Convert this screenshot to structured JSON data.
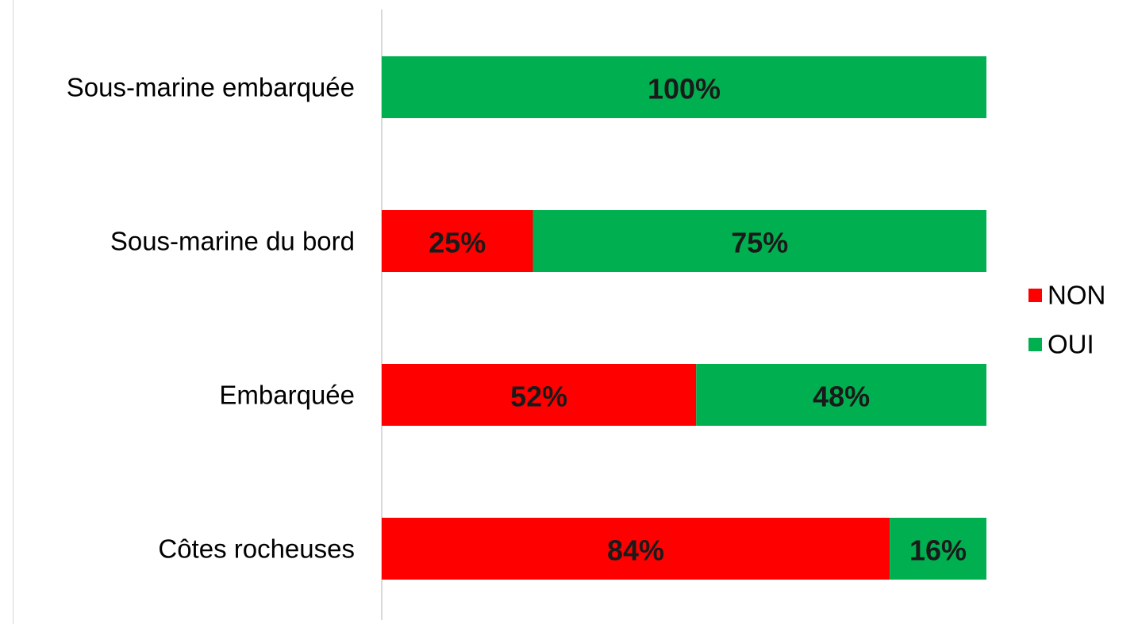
{
  "chart_data": {
    "type": "bar",
    "orientation": "horizontal",
    "stacked": true,
    "title": "",
    "xlabel": "",
    "ylabel": "",
    "xlim": [
      0,
      100
    ],
    "grid": false,
    "legend_position": "right",
    "categories": [
      "Sous-marine embarquée",
      "Sous-marine du bord",
      "Embarquée",
      "Côtes rocheuses"
    ],
    "series": [
      {
        "name": "NON",
        "color": "#ff0000",
        "values": [
          0,
          25,
          52,
          84
        ],
        "labels": [
          "",
          "25%",
          "52%",
          "84%"
        ]
      },
      {
        "name": "OUI",
        "color": "#00b050",
        "values": [
          100,
          75,
          48,
          16
        ],
        "labels": [
          "100%",
          "75%",
          "48%",
          "16%"
        ]
      }
    ]
  }
}
